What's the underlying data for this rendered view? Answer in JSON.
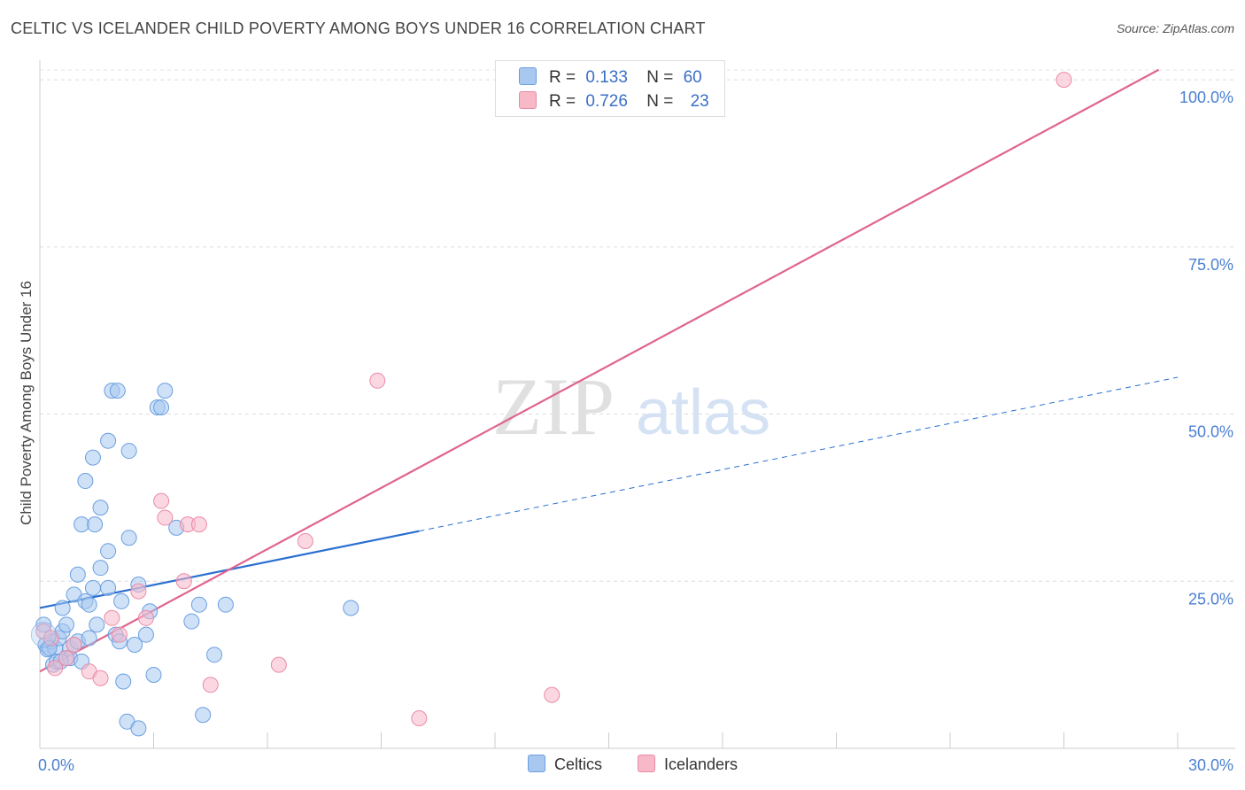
{
  "title": "CELTIC VS ICELANDER CHILD POVERTY AMONG BOYS UNDER 16 CORRELATION CHART",
  "source": "Source: ZipAtlas.com",
  "watermark": {
    "zip": "ZIP",
    "atlas": "atlas"
  },
  "legend": {
    "r_label": "R =",
    "n_label": "N =",
    "rows": [
      {
        "name": "Celtics",
        "r": "0.133",
        "n": "60"
      },
      {
        "name": "Icelanders",
        "r": "0.726",
        "n": "23"
      }
    ]
  },
  "colors": {
    "celtics_fill": "#a8c8f0",
    "celtics_stroke": "#6a9fe0",
    "celtics_line": "#2a6fd0",
    "icelanders_fill": "#f7b8c8",
    "icelanders_stroke": "#ea8aa8",
    "icelanders_line": "#e0648e"
  },
  "chart_data": {
    "type": "scatter",
    "title": "CELTIC VS ICELANDER CHILD POVERTY AMONG BOYS UNDER 16 CORRELATION CHART",
    "xlabel": "",
    "ylabel": "Child Poverty Among Boys Under 16",
    "xlim": [
      0,
      30
    ],
    "ylim": [
      0,
      102
    ],
    "x_tick_labels": [
      "0.0%",
      "30.0%"
    ],
    "y_ticks": [
      25,
      50,
      75,
      100
    ],
    "y_tick_labels": [
      "25.0%",
      "50.0%",
      "75.0%",
      "100.0%"
    ],
    "series": [
      {
        "name": "Celtics",
        "points": [
          [
            0.1,
            18.5
          ],
          [
            0.15,
            15.5
          ],
          [
            0.2,
            14.8
          ],
          [
            0.3,
            16.0
          ],
          [
            0.35,
            12.5
          ],
          [
            0.4,
            15.0
          ],
          [
            0.45,
            13.0
          ],
          [
            0.5,
            16.5
          ],
          [
            0.6,
            21.0
          ],
          [
            0.6,
            17.5
          ],
          [
            0.7,
            13.5
          ],
          [
            0.7,
            18.5
          ],
          [
            0.8,
            15.0
          ],
          [
            0.8,
            13.5
          ],
          [
            0.9,
            23.0
          ],
          [
            0.9,
            15.5
          ],
          [
            1.0,
            16.0
          ],
          [
            1.1,
            13.0
          ],
          [
            1.0,
            26.0
          ],
          [
            1.1,
            33.5
          ],
          [
            1.2,
            40.0
          ],
          [
            1.2,
            22.0
          ],
          [
            1.3,
            16.5
          ],
          [
            1.3,
            21.5
          ],
          [
            1.4,
            43.5
          ],
          [
            1.4,
            24.0
          ],
          [
            1.45,
            33.5
          ],
          [
            1.5,
            18.5
          ],
          [
            1.6,
            27.0
          ],
          [
            1.6,
            36.0
          ],
          [
            1.8,
            24.0
          ],
          [
            1.8,
            29.5
          ],
          [
            1.8,
            46.0
          ],
          [
            1.9,
            53.5
          ],
          [
            2.0,
            17.0
          ],
          [
            2.05,
            53.5
          ],
          [
            2.1,
            16.0
          ],
          [
            2.15,
            22.0
          ],
          [
            2.2,
            10.0
          ],
          [
            2.3,
            4.0
          ],
          [
            2.35,
            44.5
          ],
          [
            2.35,
            31.5
          ],
          [
            2.5,
            15.5
          ],
          [
            2.6,
            3.0
          ],
          [
            2.6,
            24.5
          ],
          [
            2.8,
            17.0
          ],
          [
            2.9,
            20.5
          ],
          [
            3.0,
            11.0
          ],
          [
            3.1,
            51.0
          ],
          [
            3.2,
            51.0
          ],
          [
            3.3,
            53.5
          ],
          [
            3.6,
            33.0
          ],
          [
            4.0,
            19.0
          ],
          [
            4.2,
            21.5
          ],
          [
            4.3,
            5.0
          ],
          [
            4.6,
            14.0
          ],
          [
            4.9,
            21.5
          ],
          [
            8.2,
            21.0
          ],
          [
            0.25,
            15.0
          ],
          [
            0.55,
            13.0
          ]
        ]
      },
      {
        "name": "Icelanders",
        "points": [
          [
            0.1,
            17.5
          ],
          [
            0.3,
            16.5
          ],
          [
            0.4,
            12.0
          ],
          [
            0.7,
            13.5
          ],
          [
            0.9,
            15.5
          ],
          [
            1.3,
            11.5
          ],
          [
            1.6,
            10.5
          ],
          [
            1.9,
            19.5
          ],
          [
            2.1,
            17.0
          ],
          [
            2.6,
            23.5
          ],
          [
            2.8,
            19.5
          ],
          [
            3.2,
            37.0
          ],
          [
            3.3,
            34.5
          ],
          [
            3.8,
            25.0
          ],
          [
            3.9,
            33.5
          ],
          [
            4.2,
            33.5
          ],
          [
            4.5,
            9.5
          ],
          [
            6.3,
            12.5
          ],
          [
            7.0,
            31.0
          ],
          [
            8.9,
            55.0
          ],
          [
            10.0,
            4.5
          ],
          [
            13.5,
            8.0
          ],
          [
            27.0,
            100.0
          ]
        ]
      }
    ],
    "trend_lines": [
      {
        "series": "Celtics",
        "from": [
          0,
          21.0
        ],
        "to": [
          10.0,
          32.5
        ],
        "style": "solid"
      },
      {
        "series": "Celtics",
        "from": [
          10.0,
          32.5
        ],
        "to": [
          30.0,
          55.5
        ],
        "style": "dashed"
      },
      {
        "series": "Icelanders",
        "from": [
          0,
          11.5
        ],
        "to": [
          29.5,
          101.5
        ],
        "style": "solid"
      }
    ]
  }
}
